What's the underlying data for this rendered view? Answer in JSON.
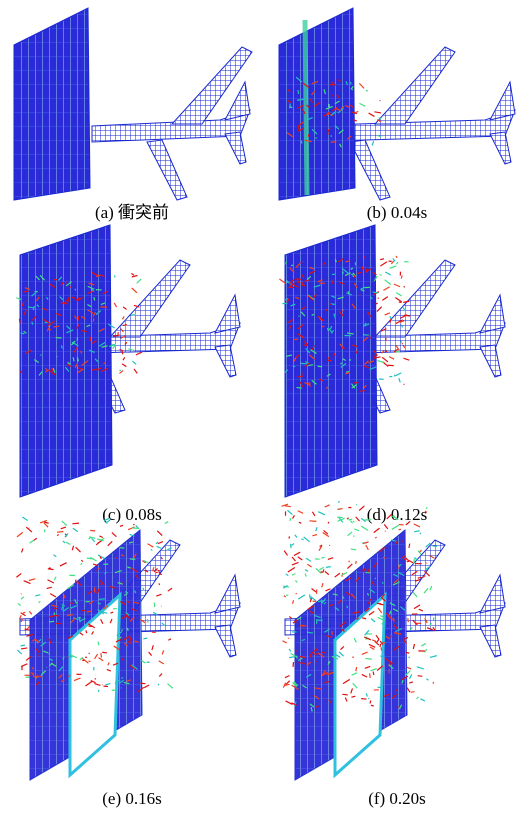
{
  "figure": {
    "panels": [
      {
        "caption": "(a)  衝突前"
      },
      {
        "caption": "(b) 0.04s"
      },
      {
        "caption": "(c) 0.08s"
      },
      {
        "caption": "(d) 0.12s"
      },
      {
        "caption": "(e) 0.16s"
      },
      {
        "caption": "(f) 0.20s"
      }
    ]
  }
}
